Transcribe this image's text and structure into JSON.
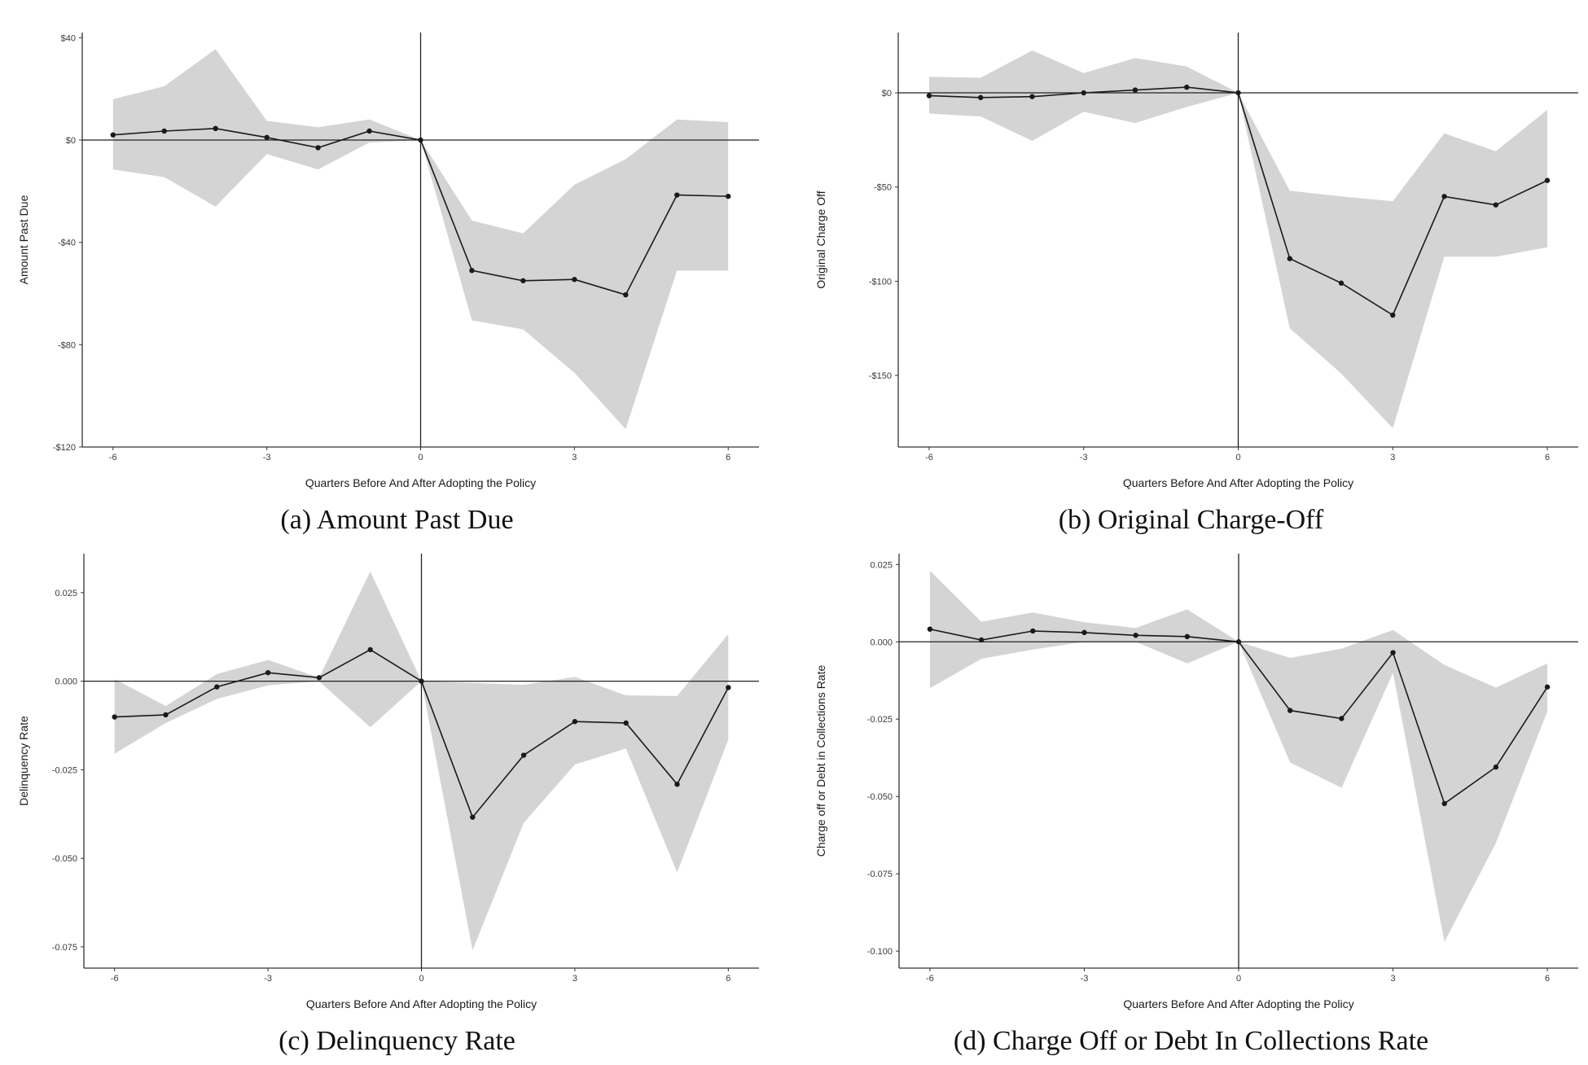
{
  "chart_data": [
    {
      "type": "line",
      "caption": "(a) Amount Past Due",
      "xlabel": "Quarters Before And After Adopting the Policy",
      "ylabel": "Amount Past Due",
      "x": [
        -6,
        -5,
        -4,
        -3,
        -2,
        -1,
        0,
        1,
        2,
        3,
        4,
        5,
        6
      ],
      "series": [
        {
          "values": [
            2,
            3.5,
            4.5,
            1,
            -3,
            3.5,
            0,
            -51,
            -55,
            -54.5,
            -60.5,
            -21.5,
            -22
          ]
        }
      ],
      "ci_upper": [
        16,
        21,
        35.5,
        7.5,
        5,
        8,
        0,
        -31.5,
        -36.5,
        -17.5,
        -7.5,
        8,
        7
      ],
      "ci_lower": [
        -11.5,
        -14.5,
        -26,
        -5.5,
        -11.5,
        -1,
        0,
        -70.5,
        -74,
        -91,
        -113,
        -51,
        -51
      ],
      "xlim": [
        -6.6,
        6.6
      ],
      "ylim": [
        -120,
        42
      ],
      "xticks": [
        -6,
        -3,
        0,
        3,
        6
      ],
      "xtick_labels": [
        "-6",
        "-3",
        "0",
        "3",
        "6"
      ],
      "yticks": [
        40,
        0,
        -40,
        -80,
        -120
      ],
      "ytick_labels": [
        "$40",
        "$0",
        "-$40",
        "-$80",
        "-$120"
      ],
      "ci_color": "#d4d4d4",
      "line_color": "#1a1a1a"
    },
    {
      "type": "line",
      "caption": "(b) Original Charge-Off",
      "xlabel": "Quarters Before And After Adopting the Policy",
      "ylabel": "Original Charge Off",
      "x": [
        -6,
        -5,
        -4,
        -3,
        -2,
        -1,
        0,
        1,
        2,
        3,
        4,
        5,
        6
      ],
      "series": [
        {
          "values": [
            -1.5,
            -2.5,
            -2,
            0,
            1.5,
            3,
            0,
            -88,
            -101,
            -118,
            -55,
            -59.5,
            -46.5
          ]
        }
      ],
      "ci_upper": [
        8.5,
        8,
        22.5,
        10.5,
        18.5,
        14,
        0,
        -52,
        -55,
        -57.5,
        -21.5,
        -31,
        -9
      ],
      "ci_lower": [
        -11,
        -12.5,
        -25.5,
        -10,
        -16,
        -7.5,
        0,
        -125,
        -149,
        -178,
        -87,
        -87,
        -82
      ],
      "xlim": [
        -6.6,
        6.6
      ],
      "ylim": [
        -188,
        32
      ],
      "xticks": [
        -6,
        -3,
        0,
        3,
        6
      ],
      "xtick_labels": [
        "-6",
        "-3",
        "0",
        "3",
        "6"
      ],
      "yticks": [
        0,
        -50,
        -100,
        -150
      ],
      "ytick_labels": [
        "$0",
        "-$50",
        "-$100",
        "-$150"
      ],
      "ci_color": "#d4d4d4",
      "line_color": "#1a1a1a"
    },
    {
      "type": "line",
      "caption": "(c) Delinquency Rate",
      "xlabel": "Quarters Before And After Adopting the Policy",
      "ylabel": "Delinquency Rate",
      "x": [
        -6,
        -5,
        -4,
        -3,
        -2,
        -1,
        0,
        1,
        2,
        3,
        4,
        5,
        6
      ],
      "series": [
        {
          "values": [
            -0.0101,
            -0.0095,
            -0.0016,
            0.0024,
            0.001,
            0.0089,
            0,
            -0.0384,
            -0.0209,
            -0.0114,
            -0.0118,
            -0.0291,
            -0.0018
          ]
        }
      ],
      "ci_upper": [
        0.0006,
        -0.007,
        0.002,
        0.006,
        0.001,
        0.031,
        0,
        -0.0005,
        -0.001,
        0.0012,
        -0.004,
        -0.0042,
        0.0133
      ],
      "ci_lower": [
        -0.0205,
        -0.0118,
        -0.005,
        -0.0012,
        0.0,
        -0.013,
        0,
        -0.076,
        -0.04,
        -0.0235,
        -0.019,
        -0.054,
        -0.0165
      ],
      "xlim": [
        -6.6,
        6.6
      ],
      "ylim": [
        -0.081,
        0.036
      ],
      "xticks": [
        -6,
        -3,
        0,
        3,
        6
      ],
      "xtick_labels": [
        "-6",
        "-3",
        "0",
        "3",
        "6"
      ],
      "yticks": [
        0.025,
        0,
        -0.025,
        -0.05,
        -0.075
      ],
      "ytick_labels": [
        "0.025",
        "0.000",
        "-0.025",
        "-0.050",
        "-0.075"
      ],
      "ci_color": "#d4d4d4",
      "line_color": "#1a1a1a"
    },
    {
      "type": "line",
      "caption": "(d) Charge Off or Debt In Collections Rate",
      "xlabel": "Quarters Before And After Adopting the Policy",
      "ylabel": "Charge off or Debt in Collections Rate",
      "x": [
        -6,
        -5,
        -4,
        -3,
        -2,
        -1,
        0,
        1,
        2,
        3,
        4,
        5,
        6
      ],
      "series": [
        {
          "values": [
            0.0041,
            0.0006,
            0.0035,
            0.003,
            0.0021,
            0.0017,
            0,
            -0.0222,
            -0.0248,
            -0.0035,
            -0.0523,
            -0.0405,
            -0.0146
          ]
        }
      ],
      "ci_upper": [
        0.023,
        0.0065,
        0.0095,
        0.0063,
        0.0045,
        0.0105,
        0,
        -0.0052,
        -0.0022,
        0.0038,
        -0.0075,
        -0.0148,
        -0.007
      ],
      "ci_lower": [
        -0.015,
        -0.0055,
        -0.0025,
        0.0,
        0.0,
        -0.007,
        0,
        -0.039,
        -0.0472,
        -0.01,
        -0.097,
        -0.065,
        -0.0225
      ],
      "xlim": [
        -6.6,
        6.6
      ],
      "ylim": [
        -0.1055,
        0.0285
      ],
      "xticks": [
        -6,
        -3,
        0,
        3,
        6
      ],
      "xtick_labels": [
        "-6",
        "-3",
        "0",
        "3",
        "6"
      ],
      "yticks": [
        0.025,
        0,
        -0.025,
        -0.05,
        -0.075,
        -0.1
      ],
      "ytick_labels": [
        "0.025",
        "0.000",
        "-0.025",
        "-0.050",
        "-0.075",
        "-0.100"
      ],
      "ci_color": "#d4d4d4",
      "line_color": "#1a1a1a"
    }
  ]
}
